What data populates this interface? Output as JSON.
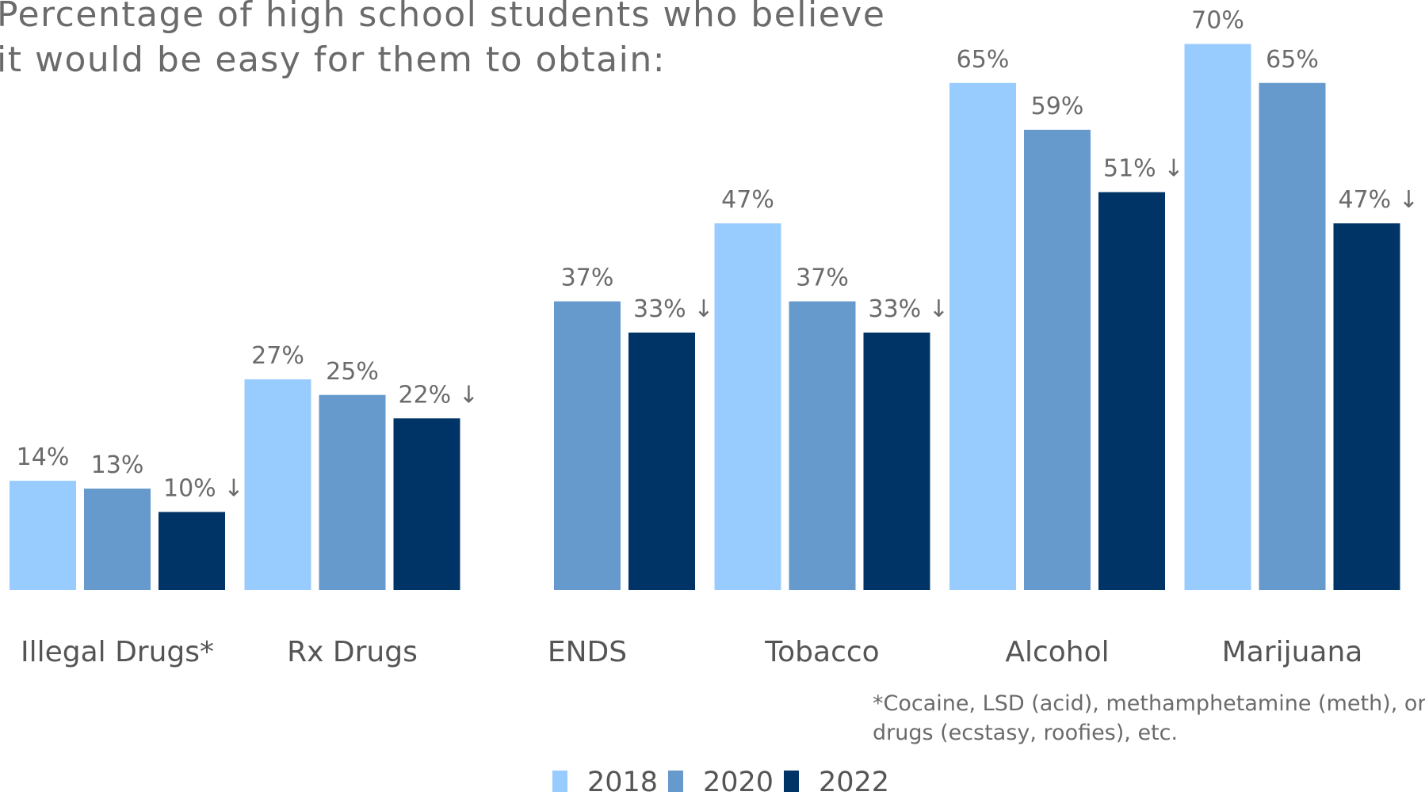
{
  "title_lines": [
    "Percentage of high school students who believe",
    "it would be easy for them to obtain:"
  ],
  "footnote_lines": [
    "*Cocaine, LSD (acid), methamphetamine (meth), or club",
    "drugs (ecstasy, roofies), etc."
  ],
  "decrease_marker": "↓",
  "colors": {
    "2018": "#99ccfe",
    "2020": "#6699cc",
    "2022": "#003366"
  },
  "chart_data": {
    "type": "bar",
    "title": "Percentage of high school students who believe it would be easy for them to obtain:",
    "xlabel": "",
    "ylabel": "",
    "ylim": [
      0,
      75
    ],
    "grid": false,
    "legend_position": "bottom-center",
    "categories": [
      "Illegal Drugs*",
      "Rx Drugs",
      "ENDS",
      "Tobacco",
      "Alcohol",
      "Marijuana"
    ],
    "series": [
      {
        "name": "2018",
        "values": [
          14,
          27,
          null,
          47,
          65,
          70
        ],
        "labels": [
          "14%",
          "27%",
          "",
          "47%",
          "65%",
          "70%"
        ]
      },
      {
        "name": "2020",
        "values": [
          13,
          25,
          37,
          37,
          59,
          65
        ],
        "labels": [
          "13%",
          "25%",
          "37%",
          "37%",
          "59%",
          "65%"
        ]
      },
      {
        "name": "2022",
        "values": [
          10,
          22,
          33,
          33,
          51,
          47
        ],
        "labels": [
          "10%",
          "22%",
          "33%",
          "33%",
          "51%",
          "47%"
        ]
      }
    ],
    "decreases": [
      {
        "category": "Illegal Drugs*",
        "series": "2022"
      },
      {
        "category": "Rx Drugs",
        "series": "2022"
      },
      {
        "category": "ENDS",
        "series": "2022"
      },
      {
        "category": "Tobacco",
        "series": "2022"
      },
      {
        "category": "Alcohol",
        "series": "2022"
      },
      {
        "category": "Marijuana",
        "series": "2022"
      }
    ]
  }
}
